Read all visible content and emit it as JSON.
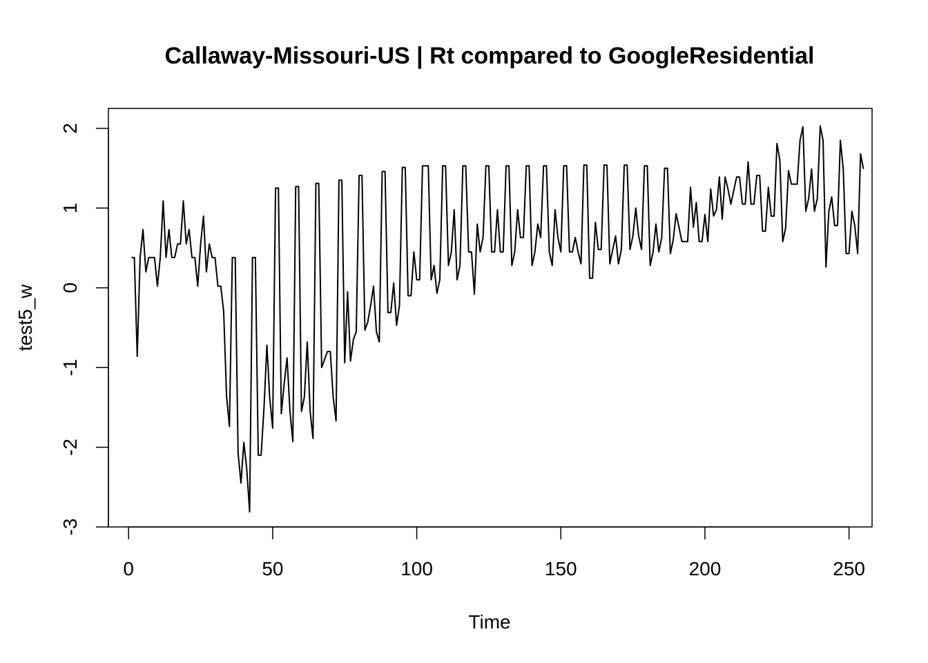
{
  "chart_data": {
    "type": "line",
    "title": "Callaway-Missouri-US | Rt compared to GoogleResidential",
    "xlabel": "Time",
    "ylabel": "test5_w",
    "xlim": [
      -7,
      258
    ],
    "ylim": [
      -3,
      2.25
    ],
    "x_ticks": [
      0,
      50,
      100,
      150,
      200,
      250
    ],
    "y_ticks": [
      -3,
      -2,
      -1,
      0,
      1,
      2
    ],
    "x_tick_labels": [
      "0",
      "50",
      "100",
      "150",
      "200",
      "250"
    ],
    "y_tick_labels": [
      "-3",
      "-2",
      "-1",
      "0",
      "1",
      "2"
    ],
    "grid": false,
    "legend": "none",
    "line_color": "#000000",
    "x_start": 1,
    "series": [
      {
        "values": [
          0.38,
          0.38,
          -0.86,
          0.38,
          0.73,
          0.2,
          0.38,
          0.38,
          0.38,
          0.02,
          0.38,
          1.09,
          0.38,
          0.73,
          0.38,
          0.38,
          0.55,
          0.55,
          1.09,
          0.55,
          0.73,
          0.38,
          0.38,
          0.02,
          0.55,
          0.9,
          0.2,
          0.55,
          0.38,
          0.38,
          0.02,
          0.02,
          -0.3,
          -1.36,
          -1.74,
          0.38,
          0.38,
          -2.07,
          -2.45,
          -1.94,
          -2.27,
          -2.81,
          0.38,
          0.38,
          -2.1,
          -2.1,
          -1.5,
          -0.72,
          -1.39,
          -1.76,
          1.25,
          1.25,
          -1.58,
          -1.2,
          -0.88,
          -1.55,
          -1.93,
          1.27,
          1.27,
          -1.55,
          -1.37,
          -0.68,
          -1.55,
          -1.89,
          1.31,
          1.31,
          -1.0,
          -0.9,
          -0.8,
          -0.8,
          -1.37,
          -1.67,
          1.35,
          1.35,
          -0.94,
          -0.05,
          -0.92,
          -0.65,
          -0.55,
          1.41,
          1.41,
          -0.53,
          -0.43,
          -0.22,
          0.02,
          -0.55,
          -0.68,
          1.46,
          1.46,
          -0.31,
          -0.31,
          0.06,
          -0.47,
          -0.22,
          1.51,
          1.51,
          -0.1,
          -0.1,
          0.45,
          0.1,
          0.1,
          1.53,
          1.53,
          1.53,
          0.1,
          0.28,
          -0.07,
          0.1,
          1.53,
          1.53,
          0.28,
          0.45,
          0.98,
          0.1,
          0.28,
          1.53,
          1.53,
          0.45,
          0.45,
          -0.08,
          0.8,
          0.45,
          0.63,
          1.53,
          1.53,
          0.45,
          0.45,
          0.98,
          0.45,
          0.45,
          1.53,
          1.53,
          0.28,
          0.45,
          0.98,
          0.63,
          0.63,
          1.53,
          1.53,
          0.28,
          0.45,
          0.8,
          0.63,
          1.53,
          1.53,
          0.45,
          0.28,
          0.98,
          0.63,
          0.45,
          1.53,
          1.53,
          0.45,
          0.45,
          0.63,
          0.45,
          0.3,
          1.54,
          1.54,
          0.12,
          0.12,
          0.82,
          0.48,
          0.48,
          1.54,
          1.54,
          0.3,
          0.48,
          0.65,
          0.3,
          0.48,
          1.54,
          1.54,
          0.48,
          0.65,
          1.0,
          0.65,
          0.48,
          1.53,
          1.53,
          0.28,
          0.45,
          0.8,
          0.45,
          0.63,
          1.5,
          1.5,
          0.43,
          0.6,
          0.93,
          0.76,
          0.58,
          0.58,
          0.58,
          1.26,
          0.76,
          1.07,
          0.58,
          0.58,
          0.92,
          0.58,
          1.24,
          0.9,
          0.98,
          1.39,
          0.86,
          1.39,
          1.24,
          1.05,
          1.22,
          1.39,
          1.39,
          1.05,
          1.05,
          1.58,
          1.05,
          1.05,
          1.41,
          1.41,
          0.71,
          0.71,
          1.26,
          0.9,
          0.9,
          1.81,
          1.6,
          0.58,
          0.75,
          1.47,
          1.3,
          1.3,
          1.3,
          1.85,
          2.02,
          0.96,
          1.12,
          1.49,
          0.96,
          1.12,
          2.03,
          1.85,
          0.26,
          0.96,
          1.14,
          0.78,
          0.78,
          1.85,
          1.49,
          0.43,
          0.43,
          0.96,
          0.78,
          0.43,
          1.68,
          1.49
        ]
      }
    ]
  }
}
